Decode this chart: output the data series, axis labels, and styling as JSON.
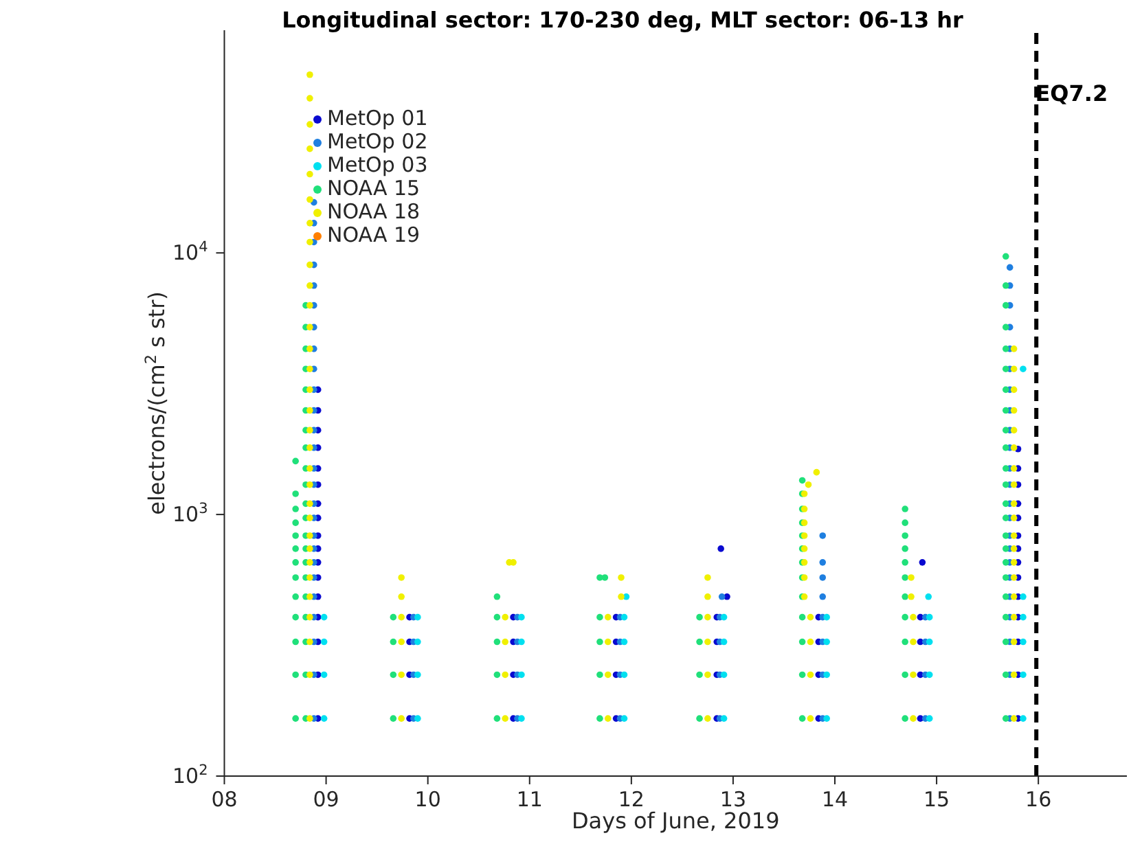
{
  "chart_data": {
    "type": "scatter",
    "title": "Longitudinal sector: 170-230 deg, MLT sector: 06-13 hr",
    "xlabel": "Days of June, 2019",
    "ylabel": "electrons/(cm$^{2}$ s str)",
    "log": "y",
    "grid": false,
    "legend": "top left",
    "marker": "circle",
    "xlim": [
      8,
      16.87
    ],
    "xticks": [
      {
        "value": 8,
        "label": "08"
      },
      {
        "value": 9,
        "label": "09"
      },
      10,
      11,
      12,
      13,
      14,
      15,
      16
    ],
    "ylim": [
      100,
      71000
    ],
    "yticks": [
      {
        "value": 100,
        "label": "10$^{2}$"
      },
      {
        "value": 1000,
        "label": "10$^{3}$"
      },
      {
        "value": 10000,
        "label": "10$^{4}$"
      }
    ],
    "ref_lines": [
      {
        "axis": "x",
        "value": 15.98,
        "label": "EQ7.2",
        "color": "#000000",
        "line_style": "dashed"
      }
    ],
    "series": [
      {
        "name": "MetOp 01",
        "color": "#0a0ad0",
        "x": [
          8.92,
          8.92,
          8.92,
          8.92,
          8.92,
          8.92,
          8.92,
          8.92,
          8.92,
          8.92,
          8.92,
          8.92,
          8.92,
          8.92,
          8.92,
          8.92,
          8.92,
          9.82,
          9.82,
          9.82,
          9.82,
          10.84,
          10.84,
          10.84,
          10.84,
          11.85,
          11.85,
          11.85,
          11.85,
          12.84,
          12.84,
          12.84,
          12.84,
          12.88,
          12.94,
          13.84,
          13.84,
          13.84,
          13.84,
          14.84,
          14.84,
          14.84,
          14.84,
          14.86,
          15.8,
          15.8,
          15.8,
          15.8,
          15.8,
          15.8,
          15.8,
          15.8,
          15.8,
          15.8,
          15.8,
          15.8,
          15.8,
          15.8
        ],
        "values": [
          166,
          244,
          326,
          405,
          485,
          574,
          656,
          740,
          830,
          970,
          1100,
          1300,
          1500,
          1800,
          2100,
          2500,
          3000,
          166,
          244,
          326,
          405,
          166,
          244,
          326,
          405,
          166,
          244,
          326,
          405,
          166,
          244,
          326,
          405,
          740,
          485,
          166,
          244,
          326,
          405,
          166,
          244,
          326,
          405,
          656,
          166,
          244,
          326,
          405,
          485,
          574,
          656,
          740,
          830,
          970,
          1100,
          1300,
          1500,
          1780
        ]
      },
      {
        "name": "MetOp 02",
        "color": "#1f7fe0",
        "x": [
          8.88,
          8.88,
          8.88,
          8.88,
          8.88,
          8.88,
          8.88,
          8.88,
          8.88,
          8.88,
          8.88,
          8.88,
          8.88,
          8.88,
          8.88,
          8.88,
          8.88,
          8.88,
          8.88,
          8.88,
          8.88,
          8.88,
          8.88,
          8.88,
          8.88,
          8.88,
          9.86,
          9.86,
          9.86,
          9.86,
          10.88,
          10.88,
          10.88,
          10.88,
          11.89,
          11.89,
          11.89,
          11.89,
          12.87,
          12.87,
          12.87,
          12.87,
          12.89,
          13.88,
          13.88,
          13.88,
          13.88,
          13.88,
          13.88,
          13.88,
          13.88,
          14.89,
          14.89,
          14.89,
          14.89,
          15.72,
          15.72,
          15.72,
          15.72,
          15.72,
          15.72,
          15.72,
          15.72,
          15.72,
          15.72,
          15.72,
          15.72,
          15.72,
          15.72,
          15.72,
          15.72,
          15.72,
          15.72,
          15.72,
          15.72,
          15.72,
          15.72,
          15.72
        ],
        "values": [
          166,
          244,
          326,
          405,
          485,
          574,
          656,
          740,
          830,
          970,
          1100,
          1300,
          1500,
          1800,
          2100,
          2500,
          3000,
          3600,
          4300,
          5200,
          6300,
          7500,
          9000,
          11000,
          13000,
          15600,
          166,
          244,
          326,
          405,
          166,
          244,
          326,
          405,
          166,
          244,
          326,
          405,
          166,
          244,
          326,
          405,
          485,
          166,
          244,
          326,
          405,
          485,
          574,
          656,
          830,
          166,
          244,
          326,
          405,
          166,
          244,
          326,
          405,
          485,
          574,
          656,
          740,
          830,
          970,
          1100,
          1300,
          1500,
          1800,
          2100,
          2500,
          3000,
          3600,
          4300,
          5200,
          6300,
          7500,
          8800
        ]
      },
      {
        "name": "MetOp 03",
        "color": "#00e0f0",
        "x": [
          8.98,
          8.98,
          8.98,
          8.98,
          9.9,
          9.9,
          9.9,
          9.9,
          10.92,
          10.92,
          10.92,
          10.92,
          11.93,
          11.93,
          11.93,
          11.93,
          11.95,
          12.91,
          12.91,
          12.91,
          12.91,
          13.92,
          13.92,
          13.92,
          13.92,
          14.93,
          14.93,
          14.93,
          14.93,
          14.92,
          15.85,
          15.85,
          15.85,
          15.85,
          15.85,
          15.85
        ],
        "values": [
          166,
          244,
          326,
          405,
          166,
          244,
          326,
          405,
          166,
          244,
          326,
          405,
          166,
          244,
          326,
          405,
          485,
          166,
          244,
          326,
          405,
          166,
          244,
          326,
          405,
          166,
          244,
          326,
          405,
          485,
          166,
          244,
          326,
          405,
          485,
          3600
        ]
      },
      {
        "name": "NOAA  15",
        "color": "#20e07a",
        "x": [
          8.7,
          8.7,
          8.7,
          8.7,
          8.7,
          8.7,
          8.7,
          8.7,
          8.7,
          8.7,
          8.7,
          8.7,
          8.7,
          8.8,
          8.8,
          8.8,
          8.8,
          8.8,
          8.8,
          8.8,
          8.8,
          8.8,
          8.8,
          8.8,
          8.8,
          8.8,
          8.8,
          8.8,
          8.8,
          8.8,
          8.8,
          8.8,
          8.8,
          8.8,
          9.66,
          9.66,
          9.66,
          9.66,
          10.68,
          10.68,
          10.68,
          10.68,
          10.68,
          11.69,
          11.69,
          11.69,
          11.69,
          11.69,
          11.74,
          12.67,
          12.67,
          12.67,
          12.67,
          13.68,
          13.68,
          13.68,
          13.68,
          13.68,
          13.68,
          13.68,
          13.68,
          13.68,
          13.68,
          13.68,
          13.68,
          13.68,
          14.69,
          14.69,
          14.69,
          14.69,
          14.69,
          14.69,
          14.69,
          14.69,
          14.69,
          14.69,
          14.69,
          15.68,
          15.68,
          15.68,
          15.68,
          15.68,
          15.68,
          15.68,
          15.68,
          15.68,
          15.68,
          15.68,
          15.68,
          15.68,
          15.68,
          15.68,
          15.68,
          15.68,
          15.68,
          15.68,
          15.68,
          15.68,
          15.68,
          15.68
        ],
        "values": [
          166,
          244,
          326,
          405,
          485,
          574,
          656,
          740,
          830,
          930,
          1050,
          1200,
          1600,
          166,
          244,
          326,
          405,
          485,
          574,
          656,
          740,
          830,
          970,
          1100,
          1300,
          1500,
          1800,
          2100,
          2500,
          3000,
          3600,
          4300,
          5200,
          6300,
          166,
          244,
          326,
          405,
          166,
          244,
          326,
          405,
          485,
          166,
          244,
          326,
          405,
          574,
          574,
          166,
          244,
          326,
          405,
          166,
          244,
          326,
          405,
          485,
          574,
          656,
          740,
          830,
          930,
          1050,
          1200,
          1350,
          166,
          244,
          326,
          405,
          485,
          574,
          656,
          740,
          830,
          930,
          1050,
          166,
          244,
          326,
          405,
          485,
          574,
          656,
          740,
          830,
          970,
          1100,
          1300,
          1500,
          1800,
          2100,
          2500,
          3000,
          3600,
          4300,
          5200,
          6300,
          7500,
          9700
        ]
      },
      {
        "name": "NOAA  18",
        "color": "#f0f000",
        "x": [
          8.84,
          8.84,
          8.84,
          8.84,
          8.84,
          8.84,
          8.84,
          8.84,
          8.84,
          8.84,
          8.84,
          8.84,
          8.84,
          8.84,
          8.84,
          8.84,
          8.84,
          8.84,
          8.84,
          8.84,
          8.84,
          8.84,
          8.84,
          8.84,
          8.84,
          8.84,
          8.84,
          8.84,
          8.84,
          8.84,
          8.84,
          9.74,
          9.74,
          9.74,
          9.74,
          9.74,
          9.74,
          10.76,
          10.76,
          10.76,
          10.76,
          10.8,
          10.84,
          11.77,
          11.77,
          11.77,
          11.77,
          11.9,
          11.9,
          12.75,
          12.75,
          12.75,
          12.75,
          12.75,
          12.75,
          13.76,
          13.76,
          13.76,
          13.76,
          13.7,
          13.7,
          13.7,
          13.7,
          13.7,
          13.7,
          13.7,
          13.7,
          13.74,
          13.82,
          14.77,
          14.77,
          14.77,
          14.77,
          14.75,
          14.75,
          15.76,
          15.76,
          15.76,
          15.76,
          15.76,
          15.76,
          15.76,
          15.76,
          15.76,
          15.76,
          15.76,
          15.76,
          15.76,
          15.76,
          15.76,
          15.76,
          15.76,
          15.76,
          15.76
        ],
        "values": [
          166,
          244,
          326,
          405,
          485,
          574,
          656,
          740,
          830,
          970,
          1100,
          1300,
          1500,
          1800,
          2100,
          2500,
          3000,
          3600,
          4300,
          5200,
          6300,
          7500,
          9000,
          11000,
          13000,
          16000,
          20000,
          25000,
          31000,
          39000,
          48000,
          166,
          244,
          326,
          405,
          485,
          574,
          166,
          244,
          326,
          405,
          656,
          656,
          166,
          244,
          326,
          405,
          485,
          574,
          166,
          244,
          326,
          405,
          485,
          574,
          166,
          244,
          326,
          405,
          485,
          574,
          656,
          740,
          830,
          930,
          1050,
          1200,
          1300,
          1450,
          166,
          244,
          326,
          405,
          485,
          574,
          166,
          244,
          326,
          405,
          485,
          574,
          656,
          740,
          830,
          970,
          1100,
          1300,
          1500,
          1800,
          2100,
          2500,
          3000,
          3600,
          4300
        ]
      },
      {
        "name": "NOAA  19",
        "color": "#ff8000"
      }
    ]
  }
}
